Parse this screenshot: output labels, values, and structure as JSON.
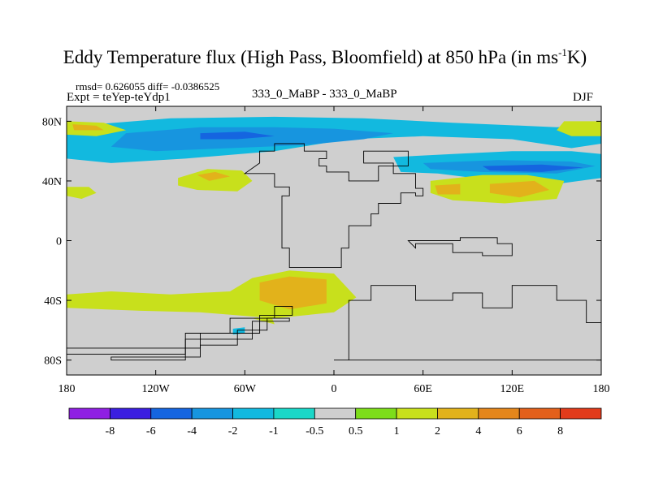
{
  "title": {
    "main": "Eddy Temperature flux (High Pass, Bloomfield) at 850 hPa (in ms",
    "sup": "-1",
    "tail": "K)"
  },
  "stats_line": "rmsd= 0.626055 diff= -0.0386525",
  "expt_line": "Expt = teYep-teYdp1",
  "center_line": "333_0_MaBP - 333_0_MaBP",
  "season": "DJF",
  "chart_data": {
    "type": "heatmap",
    "projection": "cylindrical-equidistant",
    "xlim": [
      -180,
      180
    ],
    "ylim": [
      -90,
      90
    ],
    "x_ticks": [
      {
        "value": -180,
        "label": "180"
      },
      {
        "value": -120,
        "label": "120W"
      },
      {
        "value": -60,
        "label": "60W"
      },
      {
        "value": 0,
        "label": "0"
      },
      {
        "value": 60,
        "label": "60E"
      },
      {
        "value": 120,
        "label": "120E"
      },
      {
        "value": 180,
        "label": "180"
      }
    ],
    "y_ticks": [
      {
        "value": 80,
        "label": "80N"
      },
      {
        "value": 40,
        "label": "40N"
      },
      {
        "value": 0,
        "label": "0"
      },
      {
        "value": -40,
        "label": "40S"
      },
      {
        "value": -80,
        "label": "80S"
      }
    ],
    "colorbar": {
      "labels": [
        "-8",
        "-6",
        "-4",
        "-2",
        "-1",
        "-0.5",
        "0.5",
        "1",
        "2",
        "4",
        "6",
        "8"
      ],
      "levels": [
        -8,
        -6,
        -4,
        -2,
        -1,
        -0.5,
        0.5,
        1,
        2,
        4,
        6,
        8
      ],
      "colors": [
        "#8f1fe3",
        "#3b1ee0",
        "#1565e0",
        "#1795df",
        "#12b9df",
        "#1ad7c8",
        "#cfcfcf",
        "#7ddd1a",
        "#c8e01c",
        "#e2b21b",
        "#e4861b",
        "#e3601b",
        "#e23b1b"
      ]
    },
    "regions": [
      {
        "level": -1,
        "points": [
          [
            -160,
            78
          ],
          [
            -110,
            82
          ],
          [
            -40,
            83
          ],
          [
            20,
            82
          ],
          [
            80,
            79
          ],
          [
            150,
            76
          ],
          [
            180,
            78
          ],
          [
            180,
            65
          ],
          [
            160,
            62
          ],
          [
            120,
            68
          ],
          [
            60,
            70
          ],
          [
            10,
            68
          ],
          [
            -40,
            60
          ],
          [
            -100,
            55
          ],
          [
            -150,
            52
          ],
          [
            -180,
            55
          ],
          [
            -180,
            72
          ]
        ]
      },
      {
        "level": -1,
        "points": [
          [
            40,
            56
          ],
          [
            80,
            58
          ],
          [
            120,
            60
          ],
          [
            160,
            60
          ],
          [
            180,
            58
          ],
          [
            180,
            42
          ],
          [
            150,
            38
          ],
          [
            110,
            40
          ],
          [
            70,
            45
          ],
          [
            45,
            46
          ]
        ]
      },
      {
        "level": -2,
        "points": [
          [
            -140,
            72
          ],
          [
            -90,
            76
          ],
          [
            -40,
            76
          ],
          [
            0,
            75
          ],
          [
            40,
            72
          ],
          [
            20,
            68
          ],
          [
            -20,
            64
          ],
          [
            -70,
            62
          ],
          [
            -120,
            60
          ],
          [
            -150,
            63
          ]
        ]
      },
      {
        "level": -2,
        "points": [
          [
            60,
            52
          ],
          [
            110,
            54
          ],
          [
            160,
            53
          ],
          [
            176,
            50
          ],
          [
            150,
            45
          ],
          [
            100,
            46
          ],
          [
            65,
            48
          ]
        ]
      },
      {
        "level": -4,
        "points": [
          [
            -90,
            72
          ],
          [
            -60,
            73
          ],
          [
            -40,
            70
          ],
          [
            -65,
            68
          ],
          [
            -90,
            68
          ]
        ]
      },
      {
        "level": -4,
        "points": [
          [
            100,
            50
          ],
          [
            140,
            51
          ],
          [
            168,
            49
          ],
          [
            140,
            46
          ],
          [
            105,
            47
          ]
        ]
      },
      {
        "level": 1,
        "points": [
          [
            -180,
            80
          ],
          [
            -155,
            79
          ],
          [
            -140,
            74
          ],
          [
            -160,
            70
          ],
          [
            -180,
            71
          ]
        ]
      },
      {
        "level": 2,
        "points": [
          [
            -176,
            78
          ],
          [
            -160,
            77
          ],
          [
            -155,
            74
          ],
          [
            -175,
            74
          ]
        ]
      },
      {
        "level": 1,
        "points": [
          [
            155,
            80
          ],
          [
            180,
            80
          ],
          [
            180,
            70
          ],
          [
            160,
            70
          ],
          [
            150,
            74
          ]
        ]
      },
      {
        "level": 1,
        "points": [
          [
            -180,
            36
          ],
          [
            -165,
            36
          ],
          [
            -160,
            32
          ],
          [
            -170,
            28
          ],
          [
            -180,
            30
          ]
        ]
      },
      {
        "level": 1,
        "points": [
          [
            -105,
            42
          ],
          [
            -85,
            48
          ],
          [
            -62,
            47
          ],
          [
            -55,
            40
          ],
          [
            -65,
            33
          ],
          [
            -92,
            34
          ],
          [
            -105,
            37
          ]
        ]
      },
      {
        "level": 2,
        "points": [
          [
            -92,
            44
          ],
          [
            -80,
            46
          ],
          [
            -70,
            43
          ],
          [
            -84,
            40
          ]
        ]
      },
      {
        "level": 1,
        "points": [
          [
            65,
            40
          ],
          [
            100,
            44
          ],
          [
            130,
            44
          ],
          [
            155,
            40
          ],
          [
            150,
            28
          ],
          [
            115,
            25
          ],
          [
            80,
            27
          ],
          [
            65,
            32
          ]
        ]
      },
      {
        "level": 2,
        "points": [
          [
            68,
            37
          ],
          [
            85,
            38
          ],
          [
            85,
            31
          ],
          [
            70,
            31
          ]
        ]
      },
      {
        "level": 2,
        "points": [
          [
            105,
            38
          ],
          [
            135,
            40
          ],
          [
            145,
            34
          ],
          [
            125,
            29
          ],
          [
            105,
            32
          ]
        ]
      },
      {
        "level": 1,
        "points": [
          [
            -180,
            -36
          ],
          [
            -150,
            -34
          ],
          [
            -110,
            -36
          ],
          [
            -70,
            -34
          ],
          [
            -55,
            -25
          ],
          [
            -30,
            -20
          ],
          [
            0,
            -22
          ],
          [
            15,
            -38
          ],
          [
            0,
            -48
          ],
          [
            -40,
            -52
          ],
          [
            -90,
            -48
          ],
          [
            -130,
            -47
          ],
          [
            -180,
            -45
          ]
        ]
      },
      {
        "level": 2,
        "points": [
          [
            -50,
            -28
          ],
          [
            -30,
            -24
          ],
          [
            -5,
            -26
          ],
          [
            -5,
            -42
          ],
          [
            -30,
            -46
          ],
          [
            -50,
            -40
          ]
        ]
      },
      {
        "level": -1,
        "points": [
          [
            -68,
            -59
          ],
          [
            -60,
            -58
          ],
          [
            -60,
            -62
          ],
          [
            -68,
            -63
          ]
        ]
      },
      {
        "level": 1,
        "points": [
          [
            -55,
            -52
          ],
          [
            -42,
            -51
          ],
          [
            -40,
            -56
          ],
          0
        ]
      }
    ],
    "coastlines": [
      [
        [
          -180,
          -72
        ],
        [
          -120,
          -72
        ],
        [
          -90,
          -62
        ],
        [
          -70,
          -52
        ],
        [
          -40,
          -44
        ],
        [
          -28,
          -50
        ],
        [
          -50,
          -62
        ],
        [
          -100,
          -76
        ],
        [
          -180,
          -76
        ]
      ],
      [
        [
          -150,
          -78
        ],
        [
          -90,
          -70
        ],
        [
          -65,
          -60
        ],
        [
          -45,
          -52
        ],
        [
          -30,
          -54
        ],
        [
          -55,
          -66
        ],
        [
          -100,
          -80
        ],
        [
          -150,
          -80
        ]
      ],
      [
        [
          -60,
          45
        ],
        [
          -40,
          36
        ],
        [
          -30,
          30
        ],
        [
          -35,
          10
        ],
        [
          -35,
          -5
        ],
        [
          -30,
          -18
        ],
        [
          -10,
          -18
        ],
        [
          5,
          -5
        ],
        [
          10,
          10
        ],
        [
          25,
          18
        ],
        [
          30,
          25
        ],
        [
          45,
          32
        ],
        [
          55,
          30
        ],
        [
          60,
          35
        ],
        [
          55,
          45
        ],
        [
          40,
          52
        ],
        [
          20,
          55
        ],
        [
          20,
          60
        ],
        [
          45,
          60
        ],
        [
          50,
          50
        ],
        [
          30,
          40
        ],
        [
          10,
          46
        ],
        [
          -5,
          50
        ],
        [
          -10,
          55
        ],
        [
          -5,
          60
        ],
        [
          -20,
          65
        ],
        [
          -40,
          60
        ],
        [
          -50,
          52
        ]
      ],
      [
        [
          50,
          0
        ],
        [
          85,
          2
        ],
        [
          110,
          -2
        ],
        [
          120,
          -10
        ],
        [
          100,
          -8
        ],
        [
          80,
          -2
        ],
        [
          55,
          -5
        ]
      ],
      [
        [
          10,
          -40
        ],
        [
          25,
          -30
        ],
        [
          40,
          -30
        ],
        [
          55,
          -40
        ],
        [
          80,
          -35
        ],
        [
          100,
          -45
        ],
        [
          120,
          -30
        ],
        [
          135,
          -30
        ],
        [
          150,
          -40
        ],
        [
          170,
          -55
        ],
        [
          180,
          -60
        ],
        [
          180,
          -80
        ],
        [
          0,
          -80
        ],
        [
          10,
          -50
        ]
      ]
    ]
  }
}
